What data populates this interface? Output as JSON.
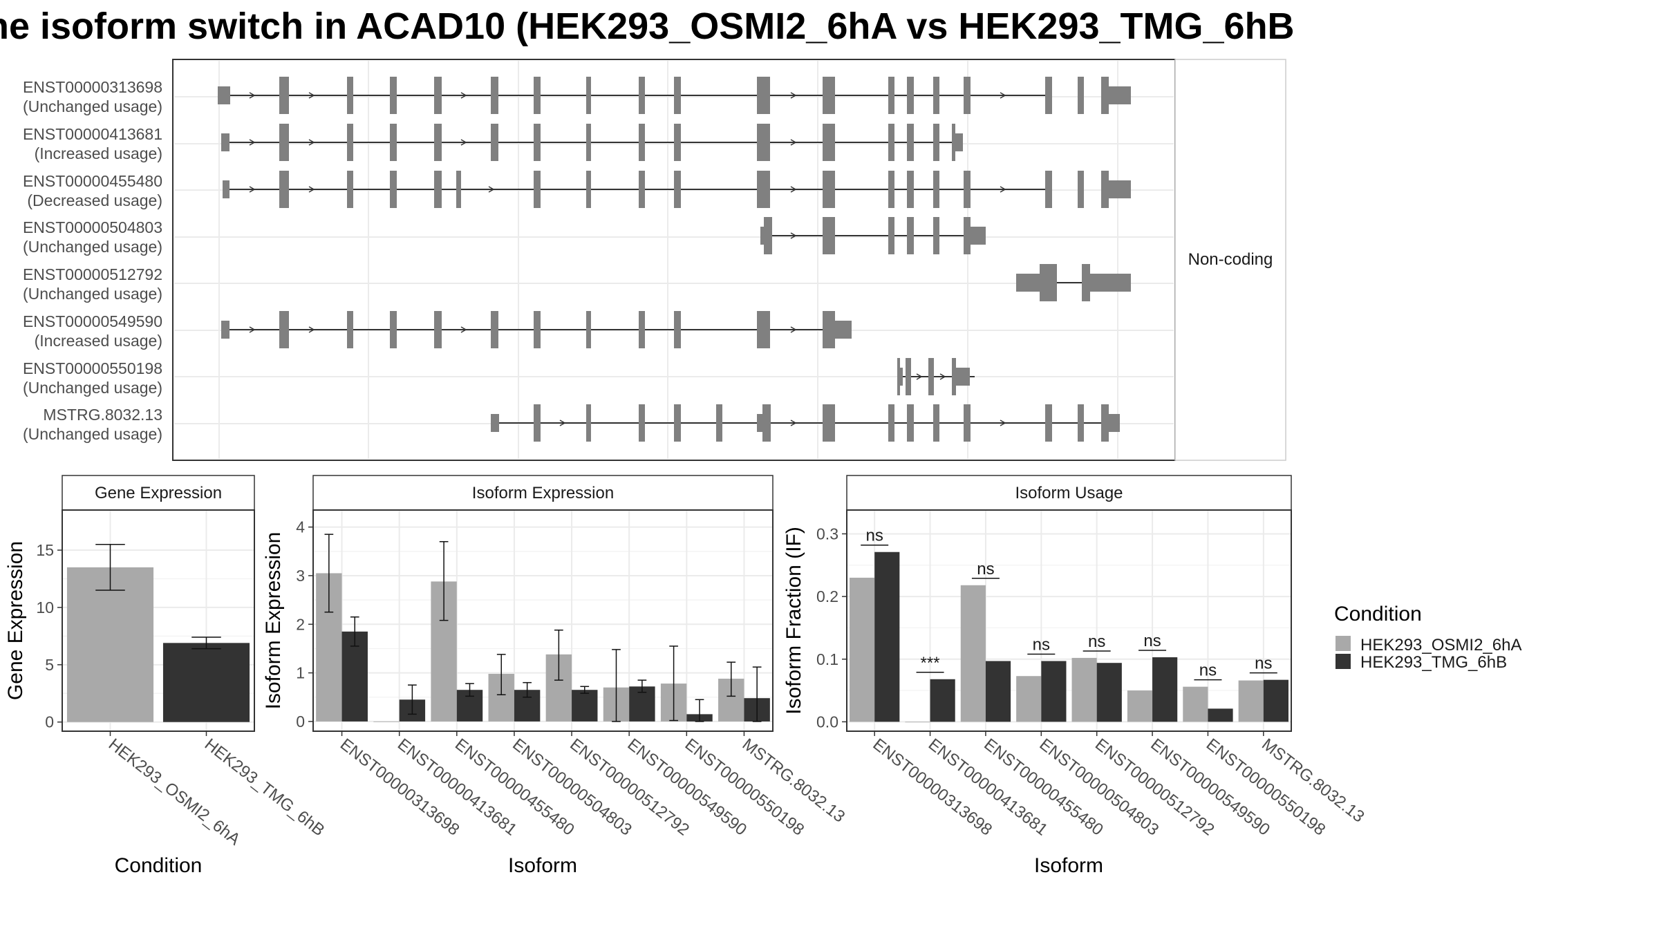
{
  "title": "he isoform switch in ACAD10 (HEK293_OSMI2_6hA vs HEK293_TMG_6hB",
  "colors": {
    "exon": "#808080",
    "condition_a": "#a9a9a9",
    "condition_b": "#333333",
    "panel_border": "#333333",
    "strip_fill": "#ffffff",
    "grid": "#ebebeb"
  },
  "structure": {
    "side_label": "Non-coding",
    "transcripts": [
      {
        "id": "ENST00000313698",
        "usage": "(Unchanged usage)"
      },
      {
        "id": "ENST00000413681",
        "usage": "(Increased usage)"
      },
      {
        "id": "ENST00000455480",
        "usage": "(Decreased usage)"
      },
      {
        "id": "ENST00000504803",
        "usage": "(Unchanged usage)"
      },
      {
        "id": "ENST00000512792",
        "usage": "(Unchanged usage)"
      },
      {
        "id": "ENST00000549590",
        "usage": "(Increased usage)"
      },
      {
        "id": "ENST00000550198",
        "usage": "(Unchanged usage)"
      },
      {
        "id": "MSTRG.8032.13",
        "usage": "(Unchanged usage)"
      }
    ]
  },
  "legend": {
    "title": "Condition",
    "items": [
      "HEK293_OSMI2_6hA",
      "HEK293_TMG_6hB"
    ]
  },
  "chart_data": [
    {
      "type": "bar",
      "title": "Gene Expression",
      "xlabel": "Condition",
      "ylabel": "Gene Expression",
      "categories": [
        "HEK293_OSMI2_6hA",
        "HEK293_TMG_6hB"
      ],
      "values": [
        13.5,
        6.9
      ],
      "error_low": [
        11.5,
        6.4
      ],
      "error_high": [
        15.5,
        7.4
      ],
      "yticks": [
        "0",
        "5",
        "10",
        "15"
      ],
      "ylim": [
        -0.8,
        18.5
      ]
    },
    {
      "type": "bar",
      "title": "Isoform Expression",
      "xlabel": "Isoform",
      "ylabel": "Isoform Expression",
      "categories": [
        "ENST00000313698",
        "ENST00000413681",
        "ENST00000455480",
        "ENST00000504803",
        "ENST00000512792",
        "ENST00000549590",
        "ENST00000550198",
        "MSTRG.8032.13"
      ],
      "series": [
        {
          "name": "HEK293_OSMI2_6hA",
          "values": [
            3.05,
            0.0,
            2.88,
            0.98,
            1.38,
            0.7,
            0.78,
            0.88
          ],
          "error_low": [
            2.25,
            0.0,
            2.08,
            0.55,
            0.85,
            0.0,
            0.02,
            0.52
          ],
          "error_high": [
            3.85,
            0.0,
            3.7,
            1.38,
            1.88,
            1.48,
            1.55,
            1.22
          ]
        },
        {
          "name": "HEK293_TMG_6hB",
          "values": [
            1.85,
            0.45,
            0.65,
            0.65,
            0.65,
            0.72,
            0.15,
            0.48
          ],
          "error_low": [
            1.55,
            0.15,
            0.52,
            0.5,
            0.58,
            0.6,
            0.0,
            0.0
          ],
          "error_high": [
            2.15,
            0.75,
            0.78,
            0.8,
            0.72,
            0.85,
            0.45,
            1.12
          ]
        }
      ],
      "yticks": [
        "0",
        "1",
        "2",
        "3",
        "4"
      ],
      "ylim": [
        -0.2,
        4.35
      ]
    },
    {
      "type": "bar",
      "title": "Isoform Usage",
      "xlabel": "Isoform",
      "ylabel": "Isoform Fraction (IF)",
      "categories": [
        "ENST00000313698",
        "ENST00000413681",
        "ENST00000455480",
        "ENST00000504803",
        "ENST00000512792",
        "ENST00000549590",
        "ENST00000550198",
        "MSTRG.8032.13"
      ],
      "series": [
        {
          "name": "HEK293_OSMI2_6hA",
          "values": [
            0.23,
            0.0,
            0.218,
            0.073,
            0.102,
            0.05,
            0.056,
            0.066
          ]
        },
        {
          "name": "HEK293_TMG_6hB",
          "values": [
            0.271,
            0.068,
            0.097,
            0.097,
            0.094,
            0.103,
            0.021,
            0.067
          ]
        }
      ],
      "significance": [
        "ns",
        "***",
        "ns",
        "ns",
        "ns",
        "ns",
        "ns",
        "ns"
      ],
      "yticks": [
        "0.0",
        "0.1",
        "0.2",
        "0.3"
      ],
      "ylim": [
        -0.015,
        0.338
      ]
    }
  ]
}
